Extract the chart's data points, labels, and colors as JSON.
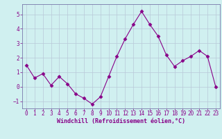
{
  "x": [
    0,
    1,
    2,
    3,
    4,
    5,
    6,
    7,
    8,
    9,
    10,
    11,
    12,
    13,
    14,
    15,
    16,
    17,
    18,
    19,
    20,
    21,
    22,
    23
  ],
  "y": [
    1.5,
    0.6,
    0.9,
    0.1,
    0.7,
    0.2,
    -0.5,
    -0.8,
    -1.2,
    -0.7,
    0.7,
    2.1,
    3.3,
    4.3,
    5.2,
    4.3,
    3.5,
    2.2,
    1.4,
    1.8,
    2.1,
    2.5,
    2.1,
    0.0
  ],
  "line_color": "#880088",
  "marker": "D",
  "marker_size": 2.5,
  "bg_color": "#d0f0f0",
  "grid_color": "#b8c8d8",
  "xlabel": "Windchill (Refroidissement éolien,°C)",
  "ylim": [
    -1.5,
    5.7
  ],
  "xlim": [
    -0.5,
    23.5
  ],
  "yticks": [
    -1,
    0,
    1,
    2,
    3,
    4,
    5
  ],
  "xticks": [
    0,
    1,
    2,
    3,
    4,
    5,
    6,
    7,
    8,
    9,
    10,
    11,
    12,
    13,
    14,
    15,
    16,
    17,
    18,
    19,
    20,
    21,
    22,
    23
  ],
  "tick_color": "#880088",
  "label_color": "#880088",
  "spine_color": "#7777aa",
  "font_size": 5.5,
  "xlabel_fontsize": 6.0,
  "linewidth": 0.8
}
